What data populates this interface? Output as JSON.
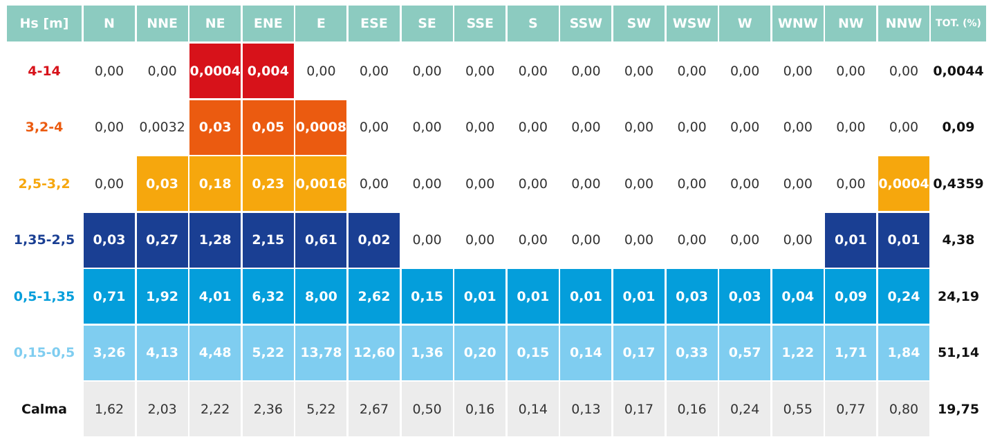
{
  "chart_data": {
    "type": "table",
    "corner_label": "Hs [m]",
    "columns": [
      "N",
      "NNE",
      "NE",
      "ENE",
      "E",
      "ESE",
      "SE",
      "SSE",
      "S",
      "SSW",
      "SW",
      "WSW",
      "W",
      "WNW",
      "NW",
      "NNW"
    ],
    "total_label": "TOT. (%)",
    "colors": {
      "header": "#8ccbc0",
      "class_4_14": "#d7121a",
      "class_3_2_4": "#eb5b10",
      "class_2_5_3_2": "#f6a70d",
      "class_1_35_2_5": "#1a3f93",
      "class_0_5_1_35": "#049edb",
      "class_0_15_0_5": "#7fcdf0",
      "calma": "#ececec"
    },
    "rows": [
      {
        "label": "4-14",
        "label_color": "#d7121a",
        "color": "#d7121a",
        "values": [
          "0,00",
          "0,00",
          "0,0004",
          "0,004",
          "0,00",
          "0,00",
          "0,00",
          "0,00",
          "0,00",
          "0,00",
          "0,00",
          "0,00",
          "0,00",
          "0,00",
          "0,00",
          "0,00"
        ],
        "filled": [
          false,
          false,
          true,
          true,
          false,
          false,
          false,
          false,
          false,
          false,
          false,
          false,
          false,
          false,
          false,
          false
        ],
        "total": "0,0044"
      },
      {
        "label": "3,2-4",
        "label_color": "#eb5b10",
        "color": "#eb5b10",
        "values": [
          "0,00",
          "0,0032",
          "0,03",
          "0,05",
          "0,0008",
          "0,00",
          "0,00",
          "0,00",
          "0,00",
          "0,00",
          "0,00",
          "0,00",
          "0,00",
          "0,00",
          "0,00",
          "0,00"
        ],
        "filled": [
          false,
          false,
          true,
          true,
          true,
          false,
          false,
          false,
          false,
          false,
          false,
          false,
          false,
          false,
          false,
          false
        ],
        "total": "0,09"
      },
      {
        "label": "2,5-3,2",
        "label_color": "#f6a70d",
        "color": "#f6a70d",
        "values": [
          "0,00",
          "0,03",
          "0,18",
          "0,23",
          "0,0016",
          "0,00",
          "0,00",
          "0,00",
          "0,00",
          "0,00",
          "0,00",
          "0,00",
          "0,00",
          "0,00",
          "0,00",
          "0,0004"
        ],
        "filled": [
          false,
          true,
          true,
          true,
          true,
          false,
          false,
          false,
          false,
          false,
          false,
          false,
          false,
          false,
          false,
          true
        ],
        "total": "0,4359"
      },
      {
        "label": "1,35-2,5",
        "label_color": "#1a3f93",
        "color": "#1a3f93",
        "values": [
          "0,03",
          "0,27",
          "1,28",
          "2,15",
          "0,61",
          "0,02",
          "0,00",
          "0,00",
          "0,00",
          "0,00",
          "0,00",
          "0,00",
          "0,00",
          "0,00",
          "0,01",
          "0,01"
        ],
        "filled": [
          true,
          true,
          true,
          true,
          true,
          true,
          false,
          false,
          false,
          false,
          false,
          false,
          false,
          false,
          true,
          true
        ],
        "total": "4,38"
      },
      {
        "label": "0,5-1,35",
        "label_color": "#049edb",
        "color": "#049edb",
        "values": [
          "0,71",
          "1,92",
          "4,01",
          "6,32",
          "8,00",
          "2,62",
          "0,15",
          "0,01",
          "0,01",
          "0,01",
          "0,01",
          "0,03",
          "0,03",
          "0,04",
          "0,09",
          "0,24"
        ],
        "filled": [
          true,
          true,
          true,
          true,
          true,
          true,
          true,
          true,
          true,
          true,
          true,
          true,
          true,
          true,
          true,
          true
        ],
        "total": "24,19"
      },
      {
        "label": "0,15-0,5",
        "label_color": "#7fcdf0",
        "color": "#7fcdf0",
        "values": [
          "3,26",
          "4,13",
          "4,48",
          "5,22",
          "13,78",
          "12,60",
          "1,36",
          "0,20",
          "0,15",
          "0,14",
          "0,17",
          "0,33",
          "0,57",
          "1,22",
          "1,71",
          "1,84"
        ],
        "filled": [
          true,
          true,
          true,
          true,
          true,
          true,
          true,
          true,
          true,
          true,
          true,
          true,
          true,
          true,
          true,
          true
        ],
        "total": "51,14"
      },
      {
        "label": "Calma",
        "label_color": "#111111",
        "color": "#ececec",
        "values": [
          "1,62",
          "2,03",
          "2,22",
          "2,36",
          "5,22",
          "2,67",
          "0,50",
          "0,16",
          "0,14",
          "0,13",
          "0,17",
          "0,16",
          "0,24",
          "0,55",
          "0,77",
          "0,80"
        ],
        "filled": [
          true,
          true,
          true,
          true,
          true,
          true,
          true,
          true,
          true,
          true,
          true,
          true,
          true,
          true,
          true,
          true
        ],
        "filled_text_dark": true,
        "total": "19,75"
      }
    ]
  }
}
